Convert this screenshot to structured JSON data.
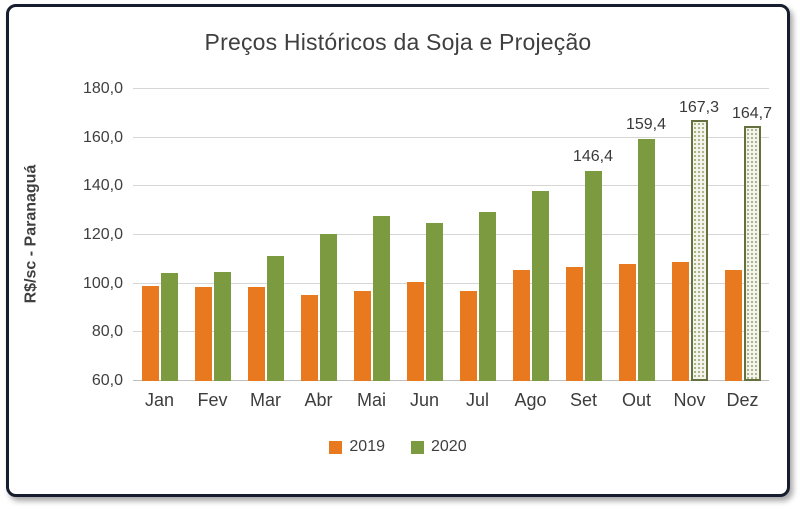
{
  "chart_data": {
    "type": "bar",
    "title": "Preços Históricos da Soja e Projeção",
    "ylabel": "R$/sc - Paranaguá",
    "xlabel": "",
    "categories": [
      "Jan",
      "Fev",
      "Mar",
      "Abr",
      "Mai",
      "Jun",
      "Jul",
      "Ago",
      "Set",
      "Out",
      "Nov",
      "Dez"
    ],
    "ylim": [
      60,
      180
    ],
    "yticks": [
      {
        "value": 180,
        "label": "180,0"
      },
      {
        "value": 160,
        "label": "160,0"
      },
      {
        "value": 140,
        "label": "140,0"
      },
      {
        "value": 120,
        "label": "120,0"
      },
      {
        "value": 100,
        "label": "100,0"
      },
      {
        "value": 80,
        "label": "80,0"
      },
      {
        "value": 60,
        "label": "60,0"
      }
    ],
    "grid": true,
    "legend_position": "bottom",
    "series": [
      {
        "name": "2019",
        "color": "#e8791e",
        "values": [
          99,
          98.5,
          98.5,
          95.5,
          97,
          100.5,
          97,
          105.5,
          107,
          108,
          109,
          105.5
        ],
        "value_labels": [
          null,
          null,
          null,
          null,
          null,
          null,
          null,
          null,
          null,
          null,
          null,
          null
        ],
        "projected": [
          false,
          false,
          false,
          false,
          false,
          false,
          false,
          false,
          false,
          false,
          false,
          false
        ]
      },
      {
        "name": "2020",
        "color": "#7c9a3f",
        "values": [
          104.5,
          105,
          111.5,
          120.5,
          128,
          125,
          129.5,
          138,
          146.4,
          159.4,
          167.3,
          164.7
        ],
        "value_labels": [
          null,
          null,
          null,
          null,
          null,
          null,
          null,
          null,
          "146,4",
          "159,4",
          "167,3",
          "164,7"
        ],
        "projected": [
          false,
          false,
          false,
          false,
          false,
          false,
          false,
          false,
          false,
          false,
          true,
          true
        ]
      }
    ]
  }
}
